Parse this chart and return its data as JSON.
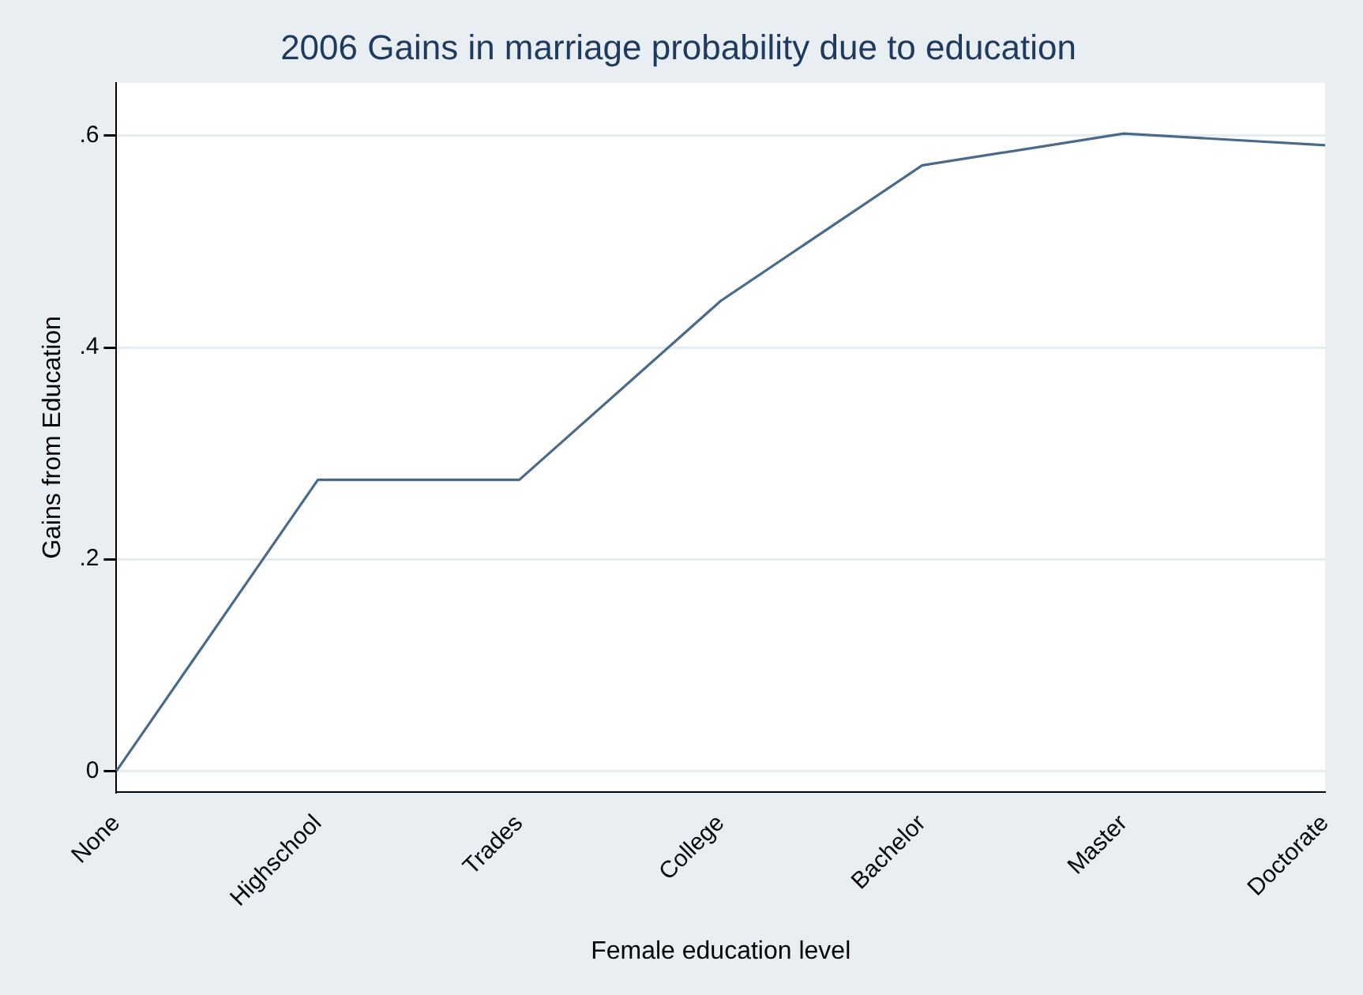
{
  "chart_data": {
    "type": "line",
    "title": "2006 Gains in marriage probability due to education",
    "xlabel": "Female education level",
    "ylabel": "Gains from Education",
    "categories": [
      "None",
      "Highschool",
      "Trades",
      "College",
      "Bachelor",
      "Master",
      "Doctorate"
    ],
    "series": [
      {
        "color": "#4a6a8a",
        "values": [
          0,
          0.275,
          0.275,
          0.444,
          0.572,
          0.602,
          0.591
        ]
      }
    ],
    "ylim": [
      -0.02,
      0.65
    ],
    "yticks": [
      {
        "value": 0,
        "label": "0"
      },
      {
        "value": 0.2,
        "label": ".2"
      },
      {
        "value": 0.4,
        "label": ".4"
      },
      {
        "value": 0.6,
        "label": ".6"
      }
    ],
    "grid": "y",
    "legend": false,
    "marker": "none",
    "line_style": "solid"
  }
}
